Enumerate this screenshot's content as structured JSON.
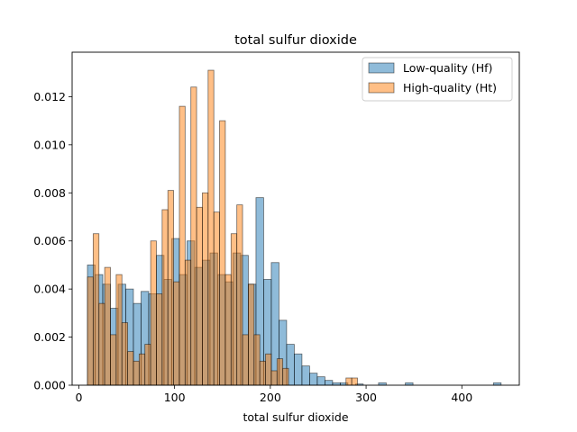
{
  "chart_data": {
    "type": "histogram",
    "title": "total sulfur dioxide",
    "xlabel": "total sulfur dioxide",
    "ylabel": "",
    "xlim": [
      -7,
      460
    ],
    "ylim": [
      0,
      0.01385
    ],
    "xticks": [
      0,
      100,
      200,
      300,
      400
    ],
    "yticks": [
      0.0,
      0.002,
      0.004,
      0.006,
      0.008,
      0.01,
      0.012
    ],
    "ytick_labels": [
      "0.000",
      "0.002",
      "0.004",
      "0.006",
      "0.008",
      "0.010",
      "0.012"
    ],
    "legend_position": "upper right",
    "series": [
      {
        "name": "Low-quality (Hf)",
        "color": "#1f77b4",
        "fill_alpha": 0.5,
        "bins": [
          [
            9,
            17,
            0.005
          ],
          [
            17,
            25,
            0.0046
          ],
          [
            25,
            33,
            0.0042
          ],
          [
            33,
            41,
            0.0032
          ],
          [
            41,
            49,
            0.0042
          ],
          [
            49,
            57,
            0.004
          ],
          [
            57,
            65,
            0.0034
          ],
          [
            65,
            73,
            0.0039
          ],
          [
            73,
            81,
            0.0038
          ],
          [
            81,
            89,
            0.0054
          ],
          [
            89,
            97,
            0.0044
          ],
          [
            97,
            105,
            0.0061
          ],
          [
            105,
            113,
            0.0046
          ],
          [
            113,
            121,
            0.006
          ],
          [
            121,
            129,
            0.0049
          ],
          [
            129,
            137,
            0.0052
          ],
          [
            137,
            145,
            0.0055
          ],
          [
            145,
            153,
            0.0046
          ],
          [
            153,
            161,
            0.0043
          ],
          [
            161,
            169,
            0.0055
          ],
          [
            169,
            177,
            0.0054
          ],
          [
            177,
            185,
            0.0042
          ],
          [
            185,
            193,
            0.0078
          ],
          [
            193,
            201,
            0.0044
          ],
          [
            201,
            209,
            0.0051
          ],
          [
            209,
            217,
            0.0027
          ],
          [
            217,
            225,
            0.0017
          ],
          [
            225,
            233,
            0.0013
          ],
          [
            233,
            241,
            0.0008
          ],
          [
            241,
            249,
            0.0005
          ],
          [
            249,
            257,
            0.00035
          ],
          [
            257,
            265,
            0.0002
          ],
          [
            265,
            273,
            0.0001
          ],
          [
            273,
            281,
            0.0001
          ],
          [
            289,
            297,
            5e-05
          ],
          [
            313,
            321,
            0.0001
          ],
          [
            341,
            349,
            0.0001
          ],
          [
            433,
            441,
            0.0001
          ]
        ]
      },
      {
        "name": "High-quality (Ht)",
        "color": "#ff7f0e",
        "fill_alpha": 0.5,
        "bins": [
          [
            9,
            15,
            0.0045
          ],
          [
            15,
            21,
            0.0063
          ],
          [
            21,
            27,
            0.0034
          ],
          [
            27,
            33,
            0.0049
          ],
          [
            33,
            39,
            0.0021
          ],
          [
            39,
            45,
            0.0046
          ],
          [
            45,
            51,
            0.0026
          ],
          [
            51,
            57,
            0.0014
          ],
          [
            57,
            63,
            0.001
          ],
          [
            63,
            69,
            0.0013
          ],
          [
            69,
            75,
            0.0017
          ],
          [
            75,
            81,
            0.006
          ],
          [
            81,
            87,
            0.0038
          ],
          [
            87,
            93,
            0.0073
          ],
          [
            93,
            99,
            0.0081
          ],
          [
            99,
            105,
            0.0043
          ],
          [
            105,
            111,
            0.0116
          ],
          [
            111,
            117,
            0.0052
          ],
          [
            117,
            123,
            0.0124
          ],
          [
            123,
            129,
            0.0074
          ],
          [
            129,
            135,
            0.008
          ],
          [
            135,
            141,
            0.0131
          ],
          [
            141,
            147,
            0.0072
          ],
          [
            147,
            153,
            0.011
          ],
          [
            153,
            159,
            0.0046
          ],
          [
            159,
            165,
            0.0063
          ],
          [
            165,
            171,
            0.0075
          ],
          [
            171,
            177,
            0.0021
          ],
          [
            177,
            183,
            0.0042
          ],
          [
            183,
            189,
            0.0021
          ],
          [
            189,
            195,
            0.001
          ],
          [
            195,
            201,
            0.0013
          ],
          [
            201,
            207,
            0.0006
          ],
          [
            207,
            213,
            0.0011
          ],
          [
            213,
            219,
            0.0007
          ],
          [
            279,
            285,
            0.0003
          ],
          [
            285,
            291,
            0.0003
          ]
        ]
      }
    ]
  }
}
